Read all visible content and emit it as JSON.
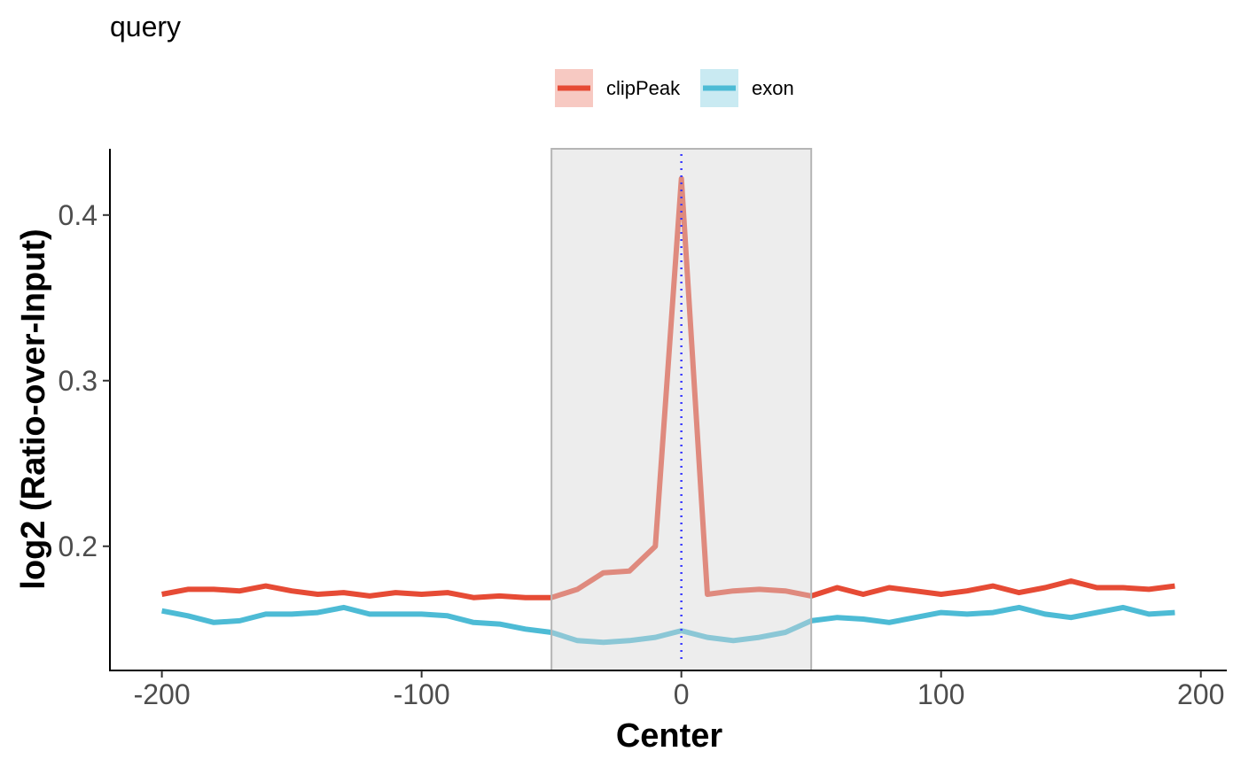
{
  "chart_data": {
    "type": "line",
    "title": "query",
    "xlabel": "Center",
    "ylabel": "log2 (Ratio-over-Input)",
    "xlim": [
      -220,
      210
    ],
    "ylim": [
      0.125,
      0.44
    ],
    "x_ticks": [
      -200,
      -100,
      0,
      100,
      200
    ],
    "y_ticks": [
      0.2,
      0.3,
      0.4
    ],
    "x_tick_labels": [
      "-200",
      "-100",
      "0",
      "100",
      "200"
    ],
    "y_tick_labels": [
      "0.2",
      "0.3",
      "0.4"
    ],
    "grid": false,
    "legend_position": "top",
    "highlight_region": [
      -50,
      50
    ],
    "center_line_x": 0,
    "x": [
      -200,
      -190,
      -180,
      -170,
      -160,
      -150,
      -140,
      -130,
      -120,
      -110,
      -100,
      -90,
      -80,
      -70,
      -60,
      -50,
      -40,
      -30,
      -20,
      -10,
      0,
      10,
      20,
      30,
      40,
      50,
      60,
      70,
      80,
      90,
      100,
      110,
      120,
      130,
      140,
      150,
      160,
      170,
      180,
      190
    ],
    "series": [
      {
        "name": "clipPeak",
        "color": "#E64B35",
        "values": [
          0.171,
          0.174,
          0.174,
          0.173,
          0.176,
          0.173,
          0.171,
          0.172,
          0.17,
          0.172,
          0.171,
          0.172,
          0.169,
          0.17,
          0.169,
          0.169,
          0.174,
          0.184,
          0.185,
          0.2,
          0.422,
          0.171,
          0.173,
          0.174,
          0.173,
          0.17,
          0.175,
          0.171,
          0.175,
          0.173,
          0.171,
          0.173,
          0.176,
          0.172,
          0.175,
          0.179,
          0.175,
          0.175,
          0.174,
          0.176
        ]
      },
      {
        "name": "exon",
        "color": "#4DBBD5",
        "values": [
          0.161,
          0.158,
          0.154,
          0.155,
          0.159,
          0.159,
          0.16,
          0.163,
          0.159,
          0.159,
          0.159,
          0.158,
          0.154,
          0.153,
          0.15,
          0.148,
          0.143,
          0.142,
          0.143,
          0.145,
          0.149,
          0.145,
          0.143,
          0.145,
          0.148,
          0.155,
          0.157,
          0.156,
          0.154,
          0.157,
          0.16,
          0.159,
          0.16,
          0.163,
          0.159,
          0.157,
          0.16,
          0.163,
          0.159,
          0.16
        ]
      }
    ]
  }
}
